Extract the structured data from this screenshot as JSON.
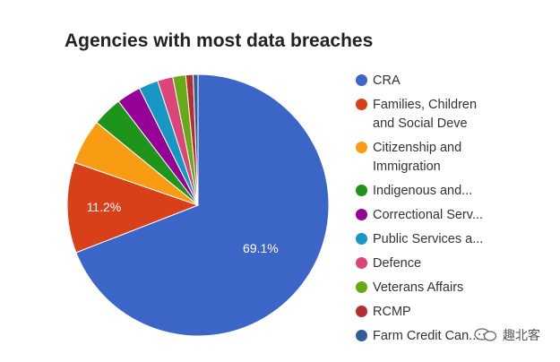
{
  "chart_data": {
    "type": "pie",
    "title": "Agencies with most data breaches",
    "slices": [
      {
        "name": "CRA",
        "legend": "CRA",
        "value": 69.1,
        "label": "69.1%",
        "color": "#3c65c8"
      },
      {
        "name": "Families, Children and Social Deve",
        "legend": "Families, Children\nand Social Deve",
        "value": 11.2,
        "label": "11.2%",
        "color": "#d8401a"
      },
      {
        "name": "Citizenship and Immigration",
        "legend": "Citizenship and\nImmigration",
        "value": 5.6,
        "label": "",
        "color": "#f79c13"
      },
      {
        "name": "Indigenous and...",
        "legend": "Indigenous and...",
        "value": 3.7,
        "label": "",
        "color": "#1e941a"
      },
      {
        "name": "Correctional Serv...",
        "legend": "Correctional Serv...",
        "value": 3.0,
        "label": "",
        "color": "#970096"
      },
      {
        "name": "Public Services a...",
        "legend": "Public Services a...",
        "value": 2.4,
        "label": "",
        "color": "#1798c4"
      },
      {
        "name": "Defence",
        "legend": "Defence",
        "value": 1.9,
        "label": "",
        "color": "#db4577"
      },
      {
        "name": "Veterans Affairs",
        "legend": "Veterans Affairs",
        "value": 1.6,
        "label": "",
        "color": "#66aa18"
      },
      {
        "name": "RCMP",
        "legend": "RCMP",
        "value": 0.9,
        "label": "",
        "color": "#b52e31"
      },
      {
        "name": "Farm Credit Can...",
        "legend": "Farm Credit Can...",
        "value": 0.6,
        "label": "",
        "color": "#315f95"
      }
    ],
    "legend_position": "right"
  },
  "watermark": {
    "text": "趣北客",
    "icon": "chat-bubbles-icon"
  }
}
